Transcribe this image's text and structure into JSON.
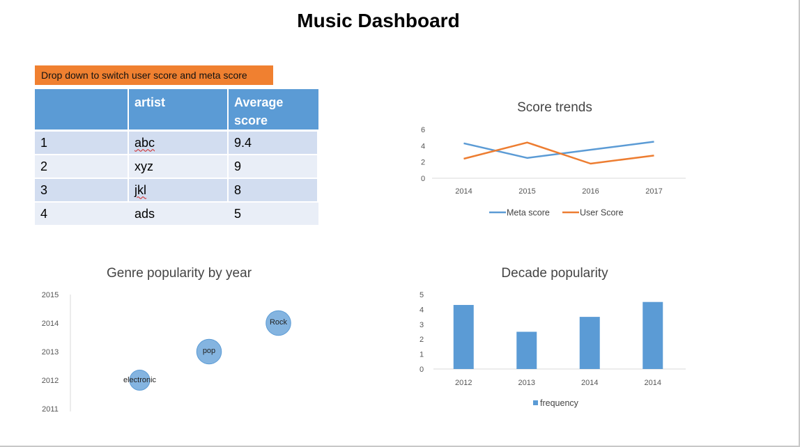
{
  "page": {
    "title": "Music Dashboard",
    "dropdown_note": "Drop down to switch user score and meta score"
  },
  "table": {
    "headers": [
      "",
      "artist",
      "Average score"
    ],
    "rows": [
      {
        "rank": "1",
        "artist": "abc",
        "score": "9.4"
      },
      {
        "rank": "2",
        "artist": "xyz",
        "score": "9"
      },
      {
        "rank": "3",
        "artist": "jkl",
        "score": "8"
      },
      {
        "rank": "4",
        "artist": "ads",
        "score": "5"
      }
    ]
  },
  "chart_data": [
    {
      "type": "line",
      "title": "Score trends",
      "categories": [
        "2014",
        "2015",
        "2016",
        "2017"
      ],
      "ylim": [
        0,
        6
      ],
      "yticks": [
        0,
        2,
        4,
        6
      ],
      "grid": "baseline only",
      "legend_position": "bottom",
      "series": [
        {
          "name": "Meta score",
          "color": "#5b9bd5",
          "values": [
            4.3,
            2.5,
            3.5,
            4.5
          ]
        },
        {
          "name": "User Score",
          "color": "#ed7d31",
          "values": [
            2.4,
            4.4,
            1.8,
            2.8
          ]
        }
      ]
    },
    {
      "type": "scatter",
      "subtype": "bubble",
      "title": "Genre popularity by year",
      "yticks": [
        2011,
        2012,
        2013,
        2014,
        2015
      ],
      "ylim": [
        2011,
        2015
      ],
      "xlim": [
        0,
        4
      ],
      "color": "#5b9bd5",
      "points": [
        {
          "label": "electronic",
          "x": 1,
          "y": 2012,
          "size": 1
        },
        {
          "label": "pop",
          "x": 2,
          "y": 2013,
          "size": 1.5
        },
        {
          "label": "Rock",
          "x": 3,
          "y": 2014,
          "size": 1.5
        }
      ]
    },
    {
      "type": "bar",
      "title": "Decade popularity",
      "categories": [
        "2012",
        "2013",
        "2014",
        "2014"
      ],
      "ylim": [
        0,
        5
      ],
      "yticks": [
        0,
        1,
        2,
        3,
        4,
        5
      ],
      "legend_position": "bottom",
      "series": [
        {
          "name": "frequency",
          "color": "#5b9bd5",
          "values": [
            4.3,
            2.5,
            3.5,
            4.5
          ]
        }
      ]
    }
  ]
}
